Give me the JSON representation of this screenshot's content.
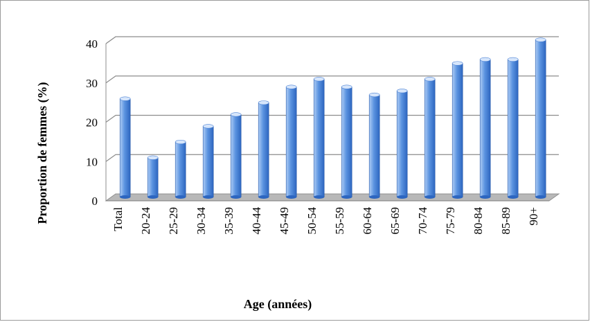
{
  "chart_data": {
    "type": "bar",
    "title": "",
    "xlabel": "Age (années)",
    "ylabel": "Proportion de femmes (%)",
    "categories": [
      "Total",
      "20-24",
      "25-29",
      "30-34",
      "35-39",
      "40-44",
      "45-49",
      "50-54",
      "55-59",
      "60-64",
      "65-69",
      "70-74",
      "75-79",
      "80-84",
      "85-89",
      "90+"
    ],
    "values": [
      25,
      10,
      14,
      18,
      21,
      24,
      28,
      30,
      28,
      26,
      27,
      30,
      34,
      35,
      35,
      40
    ],
    "ylim": [
      0,
      40
    ],
    "yticks": [
      0,
      10,
      20,
      30,
      40
    ],
    "grid": true,
    "legend": "none",
    "colors": {
      "bar_light": "#aecdf5",
      "bar_mid": "#5b93e0",
      "bar_dark": "#2d66c0",
      "bar_top": "#d7e6fb",
      "floor": "#b8b8b8",
      "gridline": "#8c8c8c"
    }
  }
}
